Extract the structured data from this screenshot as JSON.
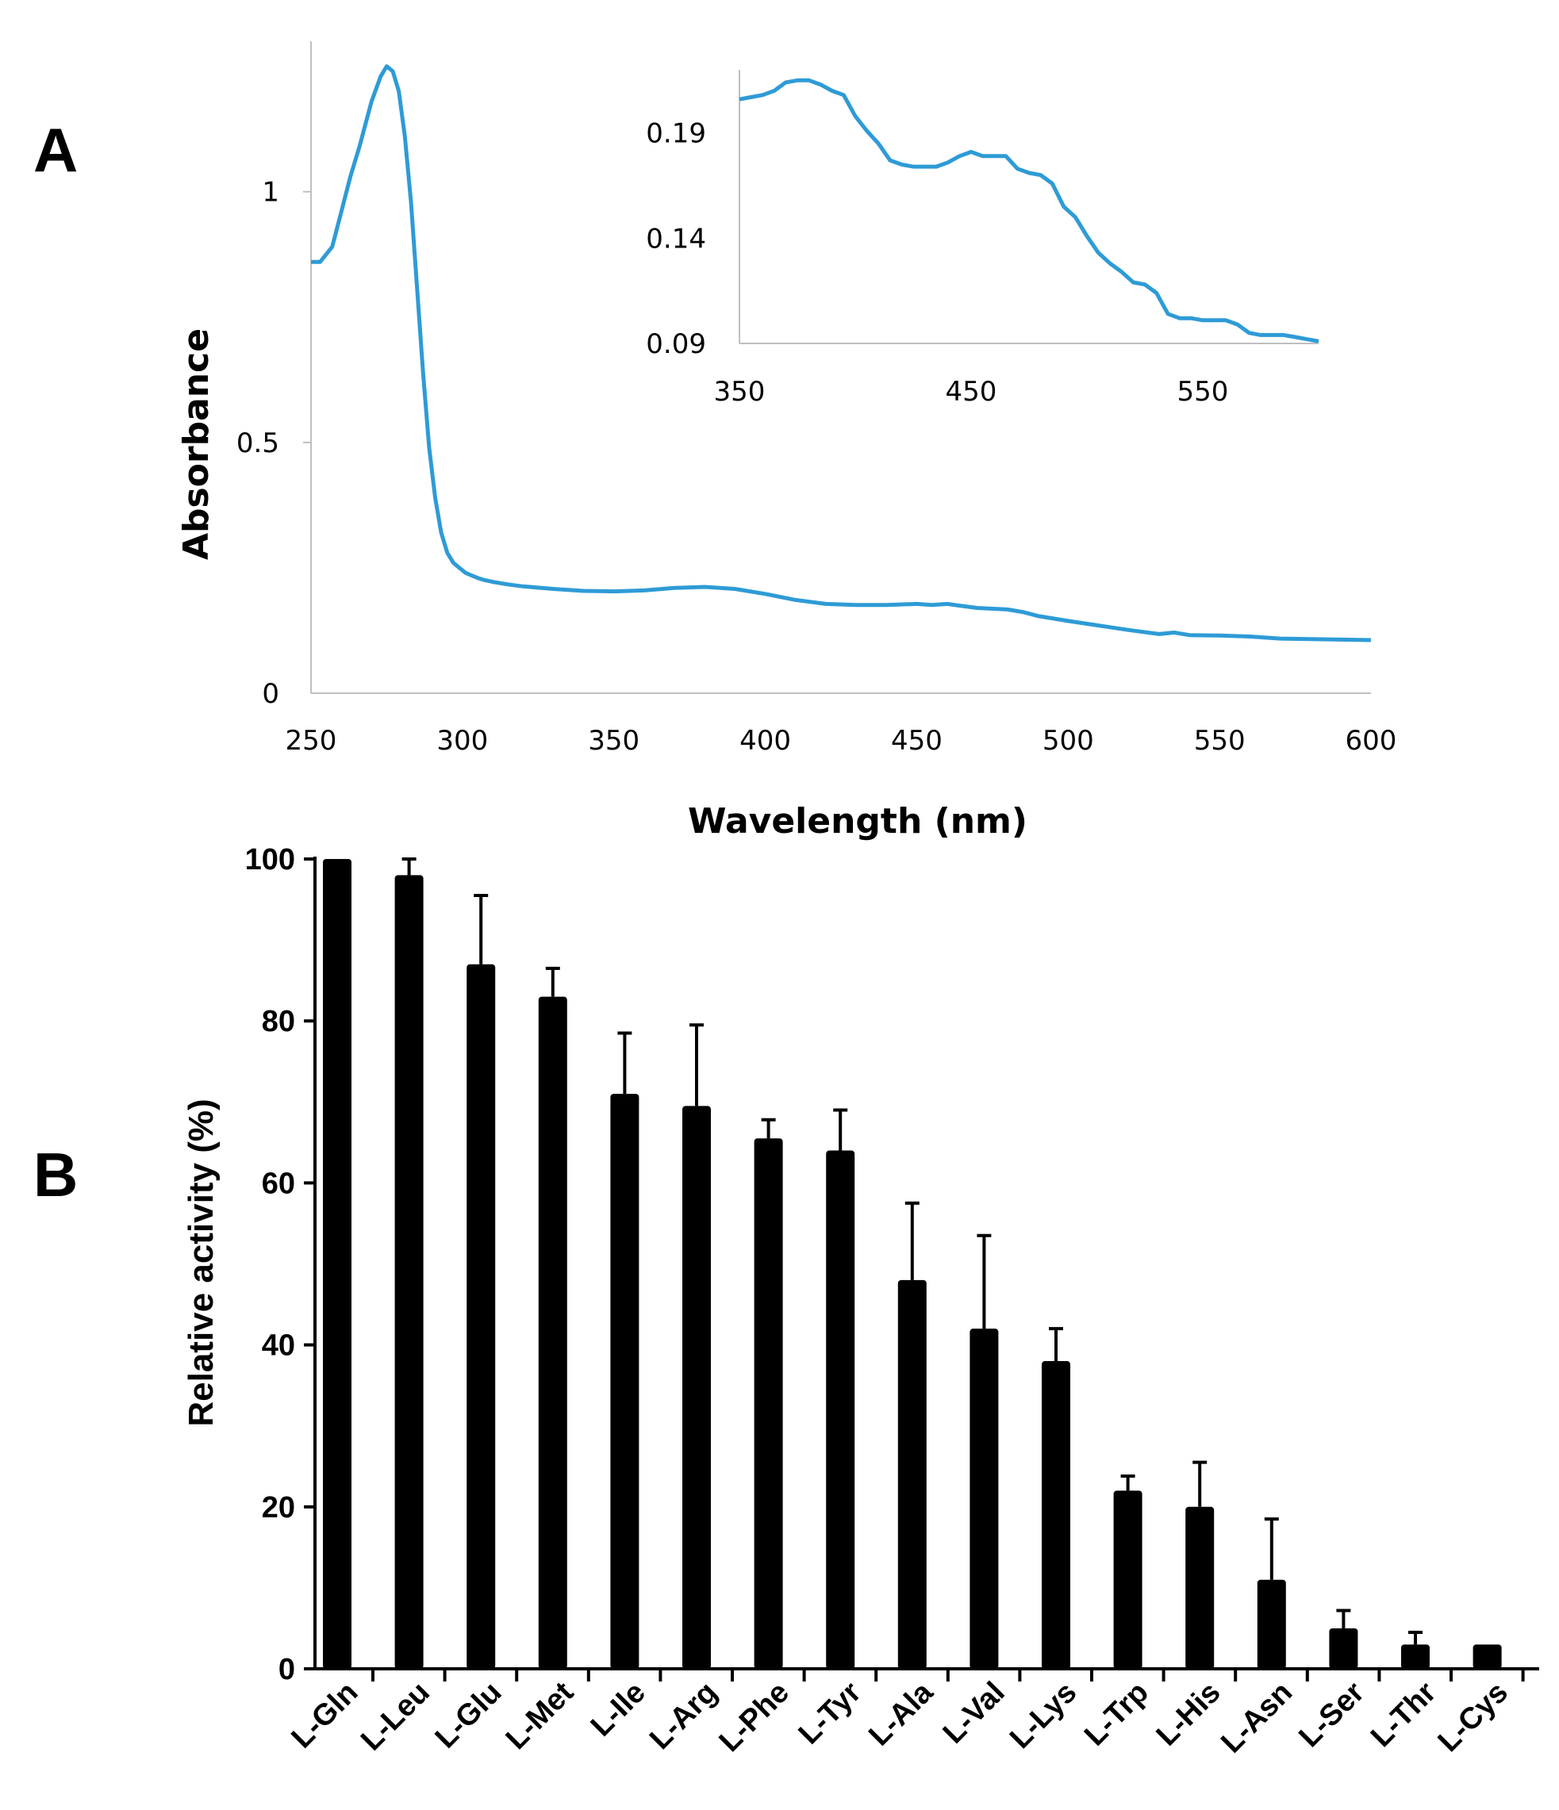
{
  "panels": {
    "a": "A",
    "b": "B"
  },
  "chart_data": [
    {
      "type": "line",
      "panel": "A",
      "title": "",
      "xlabel": "Wavelength (nm)",
      "ylabel": "Absorbance",
      "xlim": [
        250,
        600
      ],
      "ylim": [
        0,
        1.3
      ],
      "xticks": [
        "250",
        "300",
        "350",
        "400",
        "450",
        "500",
        "550",
        "600"
      ],
      "yticks": [
        {
          "value": 0,
          "label": "0"
        },
        {
          "value": 0.5,
          "label": "0.5"
        },
        {
          "value": 1,
          "label": "1"
        }
      ],
      "color": "#2e9bd6",
      "series": [
        {
          "name": "spectrum",
          "x": [
            250,
            253,
            257,
            260,
            263,
            266,
            270,
            273,
            275,
            277,
            279,
            281,
            283,
            285,
            287,
            289,
            291,
            293,
            295,
            297,
            299,
            301,
            303,
            305,
            307,
            310,
            315,
            320,
            330,
            340,
            350,
            360,
            370,
            380,
            390,
            400,
            410,
            420,
            430,
            440,
            450,
            455,
            460,
            465,
            470,
            480,
            485,
            490,
            500,
            510,
            520,
            530,
            535,
            540,
            550,
            560,
            570,
            580,
            600
          ],
          "y": [
            0.86,
            0.86,
            0.89,
            0.96,
            1.03,
            1.09,
            1.18,
            1.23,
            1.25,
            1.24,
            1.2,
            1.11,
            0.98,
            0.81,
            0.64,
            0.49,
            0.39,
            0.32,
            0.28,
            0.26,
            0.25,
            0.24,
            0.235,
            0.23,
            0.226,
            0.222,
            0.217,
            0.213,
            0.208,
            0.204,
            0.203,
            0.205,
            0.21,
            0.212,
            0.208,
            0.198,
            0.186,
            0.178,
            0.176,
            0.176,
            0.178,
            0.176,
            0.178,
            0.174,
            0.17,
            0.167,
            0.162,
            0.154,
            0.144,
            0.135,
            0.126,
            0.118,
            0.121,
            0.116,
            0.115,
            0.113,
            0.109,
            0.108,
            0.106
          ]
        }
      ],
      "inset": {
        "type": "line",
        "xlim": [
          350,
          600
        ],
        "ylim": [
          0.09,
          0.22
        ],
        "xticks": [
          "350",
          "450",
          "550"
        ],
        "yticks": [
          {
            "value": 0.09,
            "label": "0.09"
          },
          {
            "value": 0.14,
            "label": "0.14"
          },
          {
            "value": 0.19,
            "label": "0.19"
          }
        ],
        "x": [
          350,
          355,
          360,
          365,
          370,
          375,
          380,
          385,
          390,
          395,
          400,
          405,
          410,
          415,
          420,
          425,
          430,
          435,
          440,
          445,
          450,
          455,
          460,
          465,
          470,
          475,
          480,
          485,
          490,
          495,
          500,
          505,
          510,
          515,
          520,
          525,
          530,
          535,
          540,
          545,
          550,
          555,
          560,
          565,
          570,
          575,
          580,
          585,
          590,
          595,
          600
        ],
        "y": [
          0.206,
          0.207,
          0.208,
          0.21,
          0.214,
          0.215,
          0.215,
          0.213,
          0.21,
          0.208,
          0.198,
          0.191,
          0.185,
          0.177,
          0.175,
          0.174,
          0.174,
          0.174,
          0.176,
          0.179,
          0.181,
          0.179,
          0.179,
          0.179,
          0.173,
          0.171,
          0.17,
          0.166,
          0.155,
          0.15,
          0.141,
          0.133,
          0.128,
          0.124,
          0.119,
          0.118,
          0.114,
          0.104,
          0.102,
          0.102,
          0.101,
          0.101,
          0.101,
          0.099,
          0.095,
          0.094,
          0.094,
          0.094,
          0.093,
          0.092,
          0.091
        ]
      }
    },
    {
      "type": "bar",
      "panel": "B",
      "title": "",
      "xlabel": "",
      "ylabel": "Relative activity (%)",
      "ylim": [
        0,
        100
      ],
      "yticks": [
        "0",
        "20",
        "40",
        "60",
        "80",
        "100"
      ],
      "color": "#000000",
      "categories": [
        "L-Gln",
        "L-Leu",
        "L-Glu",
        "L-Met",
        "L-Ile",
        "L-Arg",
        "L-Phe",
        "L-Tyr",
        "L-Ala",
        "L-Val",
        "L-Lys",
        "L-Trp",
        "L-His",
        "L-Asn",
        "L-Ser",
        "L-Thr",
        "L-Cys"
      ],
      "values": [
        100,
        98,
        87,
        83,
        71,
        69.5,
        65.5,
        64,
        48,
        42,
        38,
        22,
        20,
        11,
        5,
        3,
        3
      ],
      "errors": [
        0,
        2,
        8.5,
        3.5,
        7.5,
        10,
        2.3,
        5,
        9.5,
        11.5,
        4,
        1.8,
        5.5,
        7.5,
        2.2,
        1.5,
        0
      ]
    }
  ]
}
